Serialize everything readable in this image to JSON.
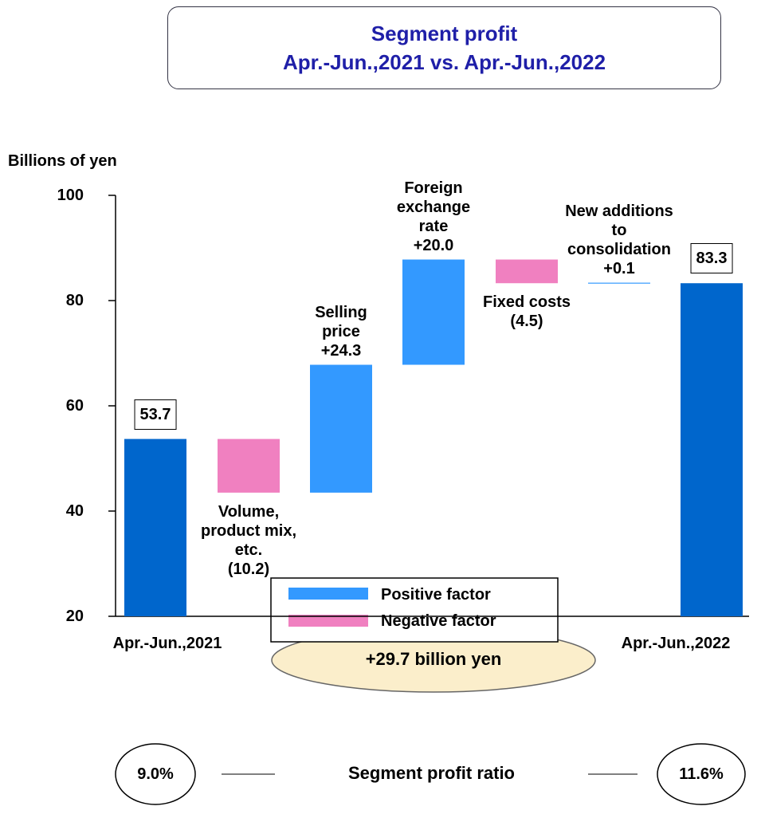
{
  "chart_data": {
    "type": "waterfall",
    "title": "Segment profit\nApr.-Jun.,2021 vs. Apr.-Jun.,2022",
    "y_label": "Billions of yen",
    "categories": [
      "Apr.-Jun.,2021",
      "Volume,\nproduct mix,\netc.",
      "Selling\nprice",
      "Foreign\nexchange\nrate",
      "Fixed costs",
      "New additions\nto\nconsolidation",
      "Apr.-Jun.,2022"
    ],
    "values": [
      53.7,
      -10.2,
      24.3,
      20.0,
      -4.5,
      0.1,
      83.3
    ],
    "value_labels": [
      "53.7",
      "(10.2)",
      "+24.3",
      "+20.0",
      "(4.5)",
      "+0.1",
      "83.3"
    ],
    "total_color": "#0066cc",
    "legend": [
      {
        "name": "Positive factor",
        "color": "#3399ff"
      },
      {
        "name": "Negative factor",
        "color": "#f080c0"
      }
    ],
    "ylim": [
      20,
      100
    ],
    "yticks": [
      20,
      40,
      60,
      80,
      100
    ],
    "annotation": "+29.7 billion yen",
    "ratio": {
      "label": "Segment profit ratio",
      "values": [
        9.0,
        11.6
      ],
      "value_labels": [
        "9.0%",
        "11.6%"
      ]
    }
  }
}
